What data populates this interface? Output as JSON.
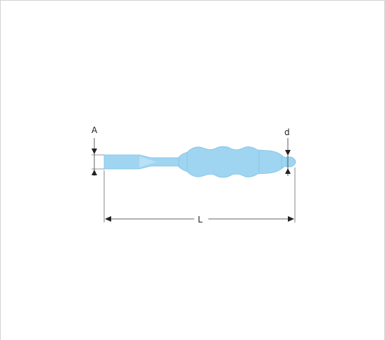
{
  "diagram": {
    "labels": {
      "A": "A",
      "d": "d",
      "L": "L"
    },
    "colors": {
      "tool_fill": "#9fd5f1",
      "tool_stroke": "#6fb9e0",
      "dimension_line": "#333333",
      "frame": "#d2d2d2"
    }
  }
}
